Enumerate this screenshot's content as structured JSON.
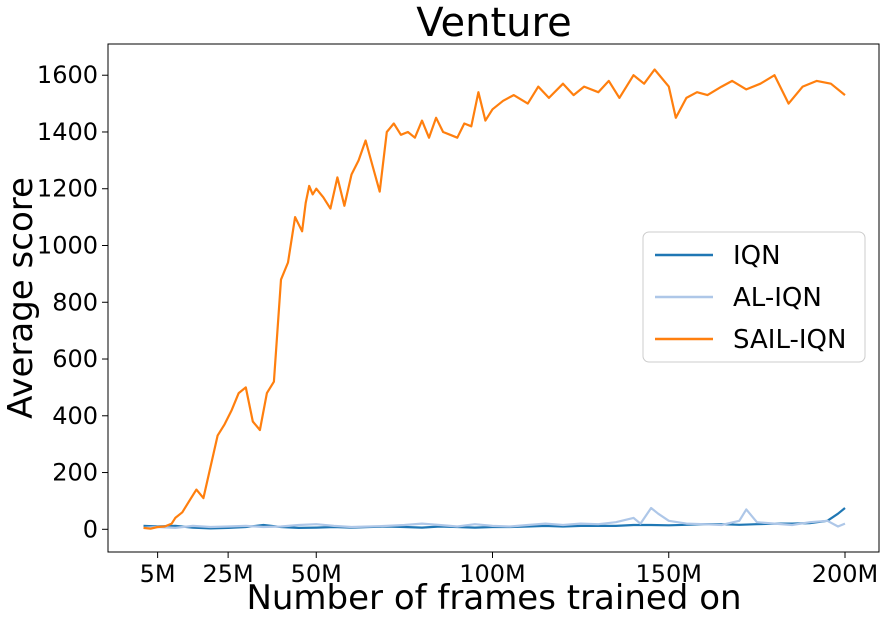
{
  "chart_data": {
    "type": "line",
    "title": "Venture",
    "xlabel": "Number of frames trained on",
    "ylabel": "Average score",
    "xlim": [
      0,
      200
    ],
    "ylim": [
      -80,
      1710
    ],
    "x_ticks": [
      {
        "value": 5,
        "label": "5M"
      },
      {
        "value": 25,
        "label": "25M"
      },
      {
        "value": 50,
        "label": "50M"
      },
      {
        "value": 100,
        "label": "100M"
      },
      {
        "value": 150,
        "label": "150M"
      },
      {
        "value": 200,
        "label": "200M"
      }
    ],
    "y_ticks": [
      0,
      200,
      400,
      600,
      800,
      1000,
      1200,
      1400,
      1600
    ],
    "grid": false,
    "legend_position": "right",
    "series": [
      {
        "name": "IQN",
        "color": "#1f77b4",
        "x": [
          1,
          5,
          10,
          15,
          20,
          25,
          30,
          35,
          40,
          45,
          50,
          55,
          60,
          65,
          70,
          75,
          80,
          85,
          90,
          95,
          100,
          105,
          110,
          115,
          120,
          125,
          130,
          135,
          140,
          145,
          150,
          155,
          160,
          165,
          170,
          175,
          180,
          185,
          190,
          195,
          198,
          200
        ],
        "y": [
          12,
          10,
          12,
          6,
          3,
          5,
          8,
          15,
          8,
          5,
          6,
          8,
          6,
          8,
          10,
          8,
          6,
          10,
          8,
          6,
          8,
          8,
          10,
          12,
          10,
          12,
          12,
          12,
          15,
          15,
          14,
          16,
          18,
          18,
          16,
          18,
          20,
          20,
          22,
          30,
          55,
          75
        ]
      },
      {
        "name": "AL-IQN",
        "color": "#aec7e8",
        "x": [
          1,
          5,
          10,
          15,
          20,
          25,
          30,
          35,
          40,
          45,
          50,
          55,
          60,
          65,
          70,
          75,
          80,
          85,
          90,
          95,
          100,
          105,
          110,
          115,
          120,
          125,
          130,
          135,
          140,
          142,
          145,
          147,
          150,
          155,
          160,
          165,
          170,
          172,
          175,
          180,
          185,
          190,
          195,
          198,
          200
        ],
        "y": [
          5,
          8,
          5,
          12,
          8,
          10,
          12,
          8,
          10,
          15,
          18,
          12,
          8,
          10,
          12,
          15,
          20,
          15,
          10,
          18,
          12,
          10,
          15,
          20,
          15,
          20,
          18,
          25,
          40,
          20,
          75,
          55,
          30,
          20,
          18,
          15,
          30,
          70,
          25,
          20,
          15,
          25,
          30,
          10,
          20
        ]
      },
      {
        "name": "SAIL-IQN",
        "color": "#ff7f0e",
        "x": [
          1,
          3,
          5,
          7,
          9,
          10,
          12,
          14,
          16,
          18,
          20,
          22,
          24,
          26,
          28,
          30,
          32,
          34,
          36,
          38,
          40,
          42,
          44,
          46,
          47,
          48,
          49,
          50,
          52,
          54,
          56,
          58,
          60,
          62,
          64,
          66,
          68,
          70,
          72,
          74,
          76,
          78,
          80,
          82,
          84,
          86,
          88,
          90,
          92,
          94,
          96,
          98,
          100,
          103,
          106,
          110,
          113,
          116,
          120,
          123,
          126,
          130,
          133,
          136,
          140,
          143,
          146,
          150,
          152,
          155,
          158,
          161,
          165,
          168,
          172,
          176,
          180,
          184,
          188,
          192,
          196,
          200
        ],
        "y": [
          5,
          2,
          8,
          10,
          20,
          40,
          60,
          100,
          140,
          110,
          220,
          330,
          370,
          420,
          480,
          500,
          380,
          350,
          480,
          520,
          880,
          940,
          1100,
          1050,
          1150,
          1210,
          1180,
          1200,
          1170,
          1130,
          1240,
          1140,
          1250,
          1300,
          1370,
          1280,
          1190,
          1400,
          1430,
          1390,
          1400,
          1380,
          1440,
          1380,
          1450,
          1400,
          1390,
          1380,
          1430,
          1420,
          1540,
          1440,
          1480,
          1510,
          1530,
          1500,
          1560,
          1520,
          1570,
          1530,
          1560,
          1540,
          1580,
          1520,
          1600,
          1570,
          1620,
          1560,
          1450,
          1520,
          1540,
          1530,
          1560,
          1580,
          1550,
          1570,
          1600,
          1500,
          1560,
          1580,
          1570,
          1530
        ]
      }
    ]
  }
}
